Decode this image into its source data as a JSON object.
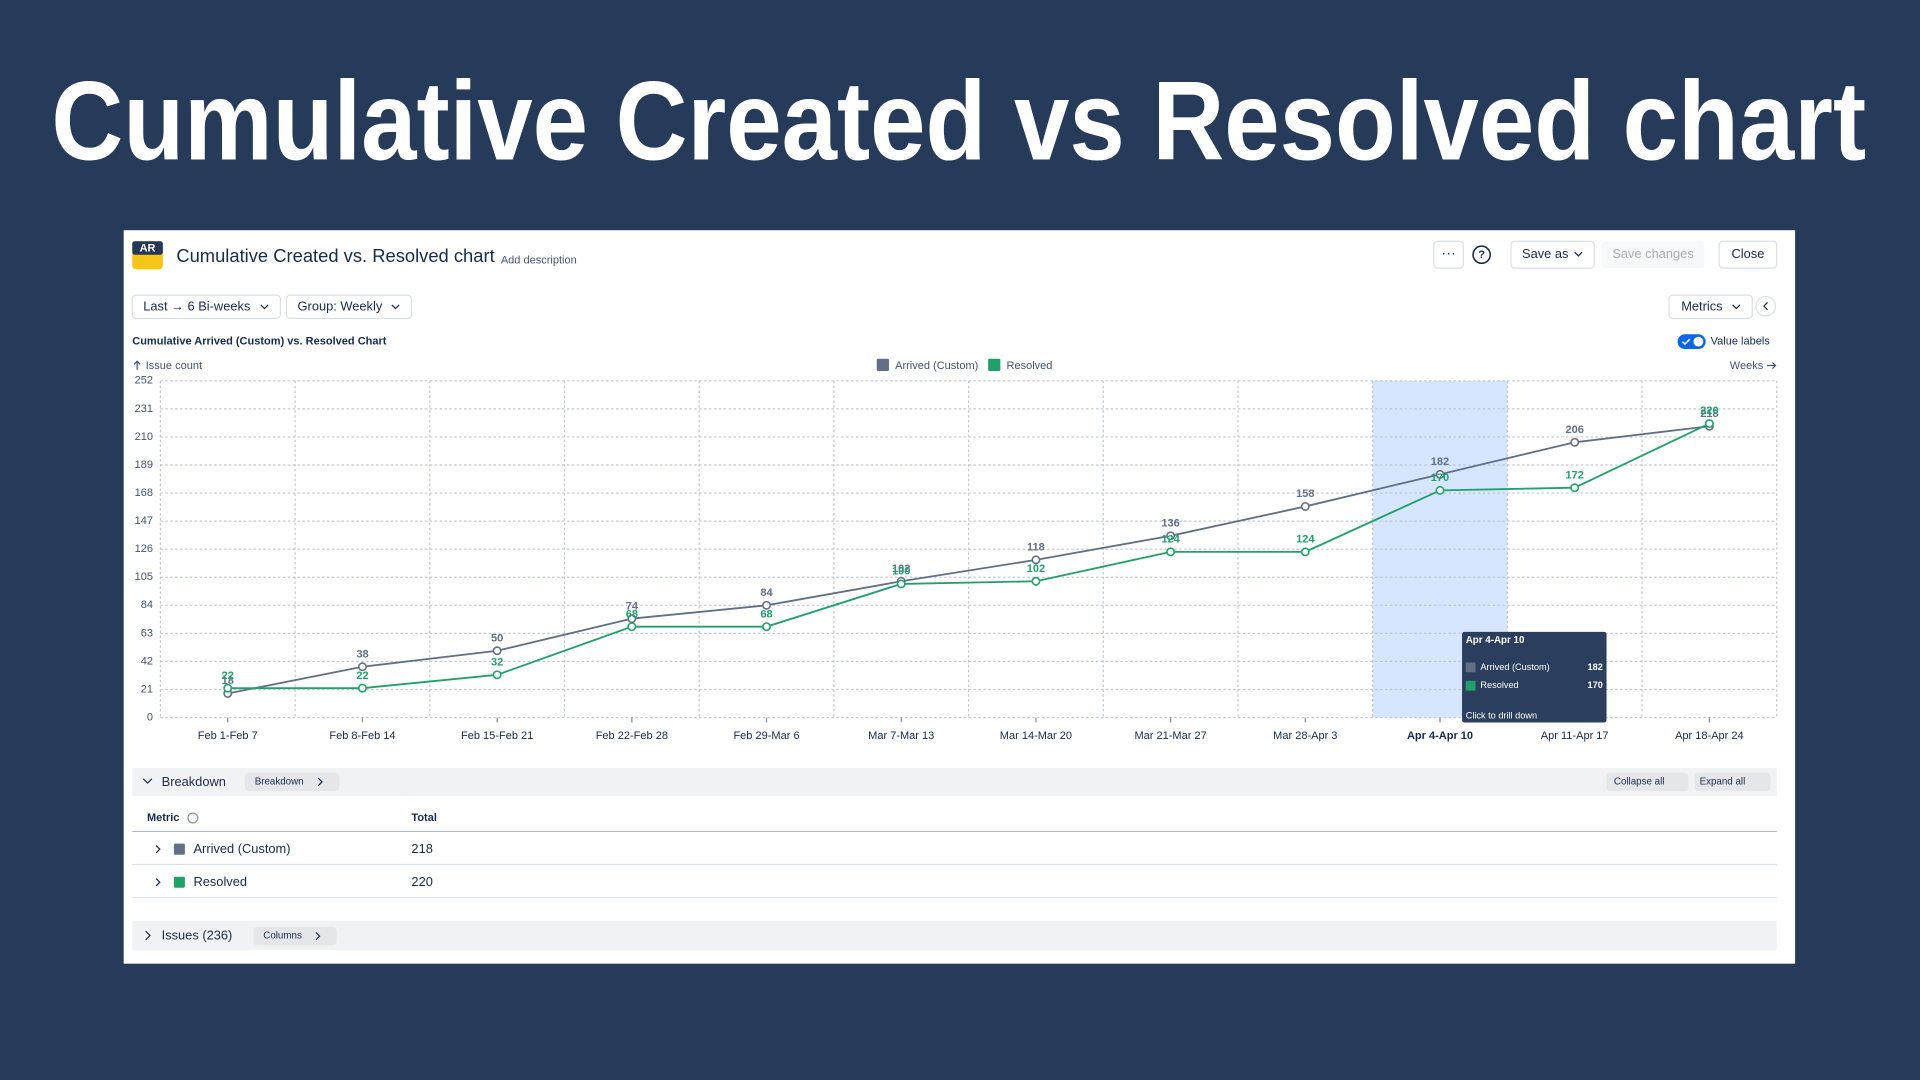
{
  "page_title": "Cumulative Created vs Resolved chart",
  "header": {
    "logo": "AR",
    "title": "Cumulative Created vs. Resolved chart",
    "description": "Add description",
    "save_as": "Save as",
    "save_changes": "Save changes",
    "close": "Close"
  },
  "filters": [
    "Last → 6 Bi-weeks",
    "Group: Weekly"
  ],
  "metrics_button": "Metrics",
  "chart_data": {
    "type": "line",
    "title": "Cumulative Arrived (Custom) vs. Resolved Chart",
    "y_label": "Issue count",
    "x_label": "Weeks",
    "value_labels_toggle": "Value labels",
    "categories": [
      "Feb 1-Feb 7",
      "Feb 8-Feb 14",
      "Feb 15-Feb 21",
      "Feb 22-Feb 28",
      "Feb 29-Mar 6",
      "Mar 7-Mar 13",
      "Mar 14-Mar 20",
      "Mar 21-Mar 27",
      "Mar 28-Apr 3",
      "Apr 4-Apr 10",
      "Apr 11-Apr 17",
      "Apr 18-Apr 24"
    ],
    "series": [
      {
        "name": "Arrived (Custom)",
        "color": "#626f86",
        "values": [
          18,
          38,
          50,
          74,
          84,
          102,
          118,
          136,
          158,
          182,
          206,
          218
        ]
      },
      {
        "name": "Resolved",
        "color": "#22a06b",
        "values": [
          22,
          22,
          32,
          68,
          68,
          100,
          102,
          124,
          124,
          170,
          172,
          220
        ]
      }
    ],
    "ylim": [
      0,
      252
    ],
    "yticks": [
      0,
      21,
      42,
      63,
      84,
      105,
      126,
      147,
      168,
      189,
      210,
      231,
      252
    ],
    "grid": true,
    "highlight_index": 9,
    "tooltip_hint": "Click to drill down"
  },
  "breakdown": {
    "title": "Breakdown",
    "chip": "Breakdown",
    "collapse": "Collapse all",
    "expand": "Expand all",
    "columns": [
      "Metric",
      "Total"
    ],
    "rows": [
      [
        "Arrived (Custom)",
        218
      ],
      [
        "Resolved",
        220
      ]
    ]
  },
  "issues": {
    "title": "Issues (236)",
    "chip": "Columns"
  }
}
